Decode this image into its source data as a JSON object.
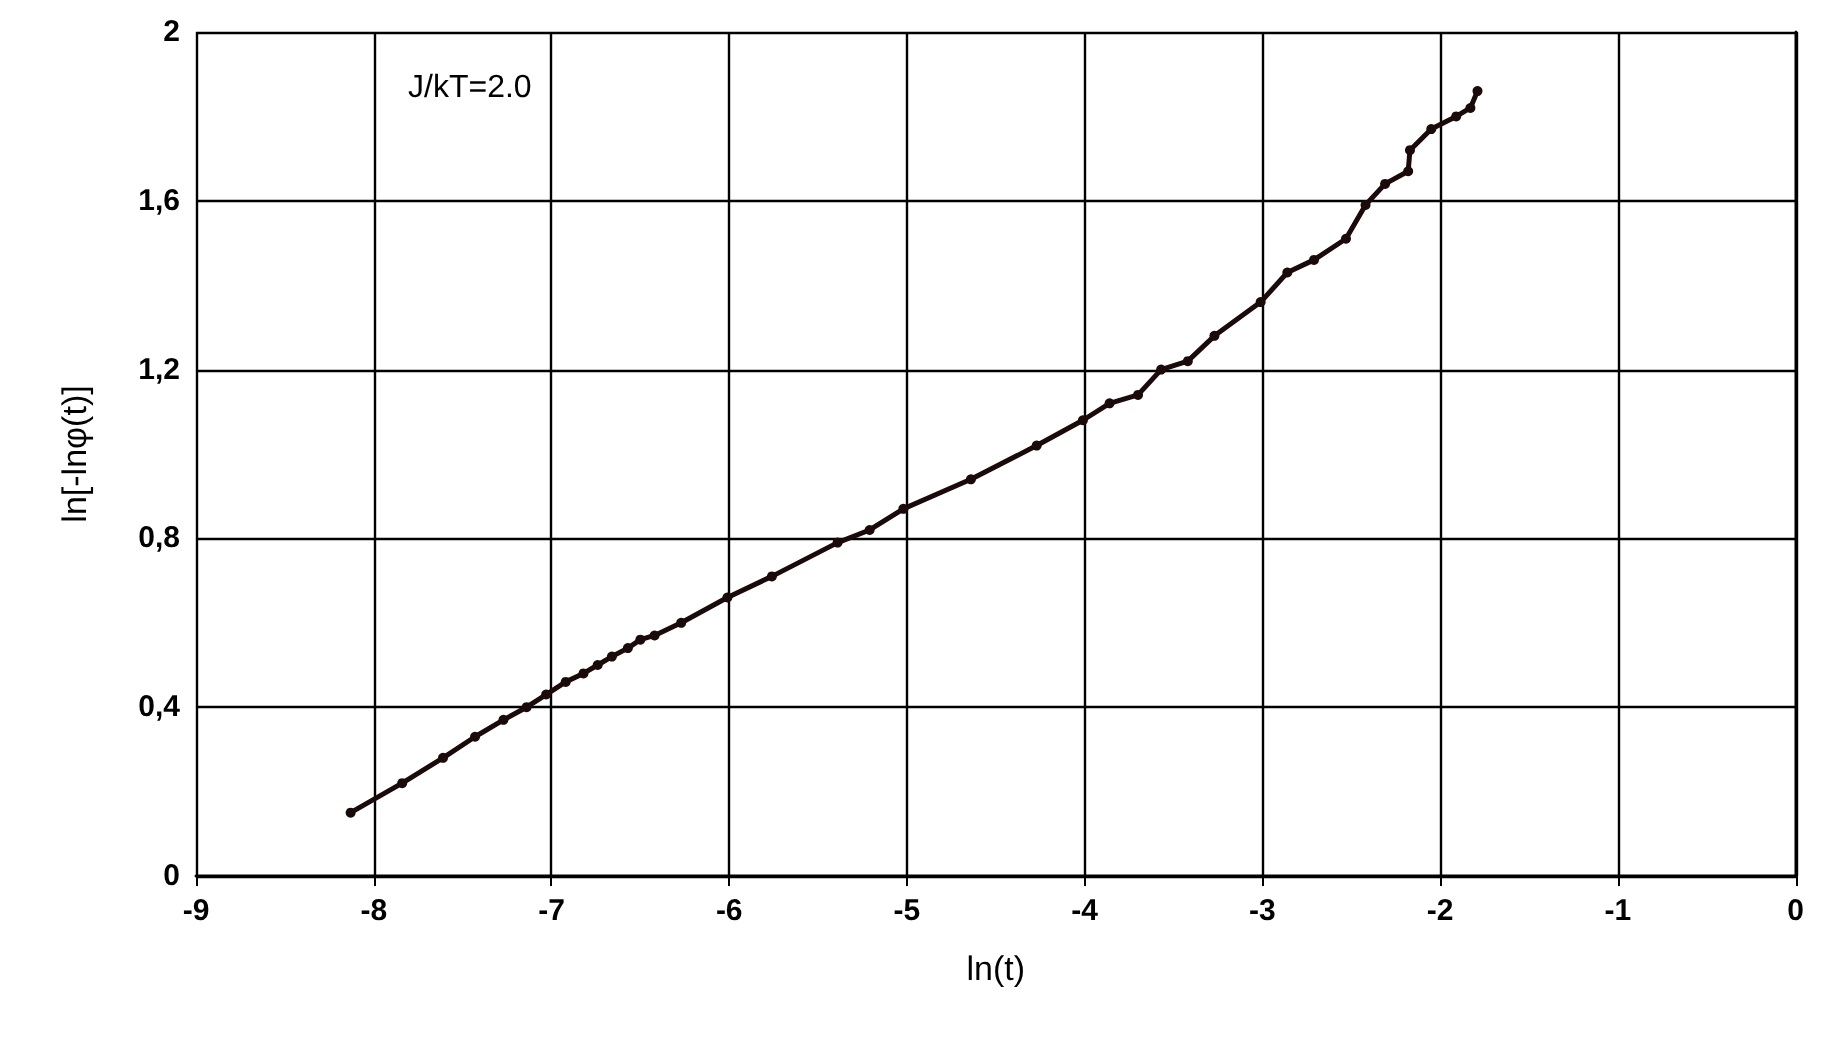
{
  "chart_data": {
    "type": "line",
    "xlabel": "ln(t)",
    "ylabel": "ln[-lnφ(t)]",
    "annotations": [
      "J/kT=2.0"
    ],
    "xlim": [
      -9,
      0
    ],
    "ylim": [
      0,
      2
    ],
    "xticks": [
      -9,
      -8,
      -7,
      -6,
      -5,
      -4,
      -3,
      -2,
      -1,
      0
    ],
    "yticks": [
      0,
      {
        "value": 0.4,
        "label": "0,4"
      },
      {
        "value": 0.8,
        "label": "0,8"
      },
      {
        "value": 1.2,
        "label": "1,2"
      },
      {
        "value": 1.6,
        "label": "1,6"
      },
      2
    ],
    "grid": true,
    "marker": "circle",
    "line_style": "solid",
    "series": [
      {
        "color": "#1a0a0a",
        "x": [
          -8.13,
          -7.84,
          -7.61,
          -7.43,
          -7.27,
          -7.14,
          -7.03,
          -6.92,
          -6.82,
          -6.74,
          -6.66,
          -6.57,
          -6.5,
          -6.42,
          -6.27,
          -6.01,
          -5.76,
          -5.39,
          -5.21,
          -5.02,
          -4.64,
          -4.27,
          -4.01,
          -3.86,
          -3.7,
          -3.57,
          -3.42,
          -3.27,
          -3.01,
          -2.86,
          -2.71,
          -2.53,
          -2.42,
          -2.31,
          -2.18,
          -2.17,
          -2.05,
          -1.91,
          -1.83,
          -1.79
        ],
        "values": [
          0.15,
          0.22,
          0.28,
          0.33,
          0.37,
          0.4,
          0.43,
          0.46,
          0.48,
          0.5,
          0.52,
          0.54,
          0.56,
          0.57,
          0.6,
          0.66,
          0.71,
          0.79,
          0.82,
          0.87,
          0.94,
          1.02,
          1.08,
          1.12,
          1.14,
          1.2,
          1.22,
          1.28,
          1.36,
          1.43,
          1.46,
          1.51,
          1.59,
          1.64,
          1.67,
          1.72,
          1.77,
          1.8,
          1.82,
          1.86
        ]
      }
    ]
  }
}
